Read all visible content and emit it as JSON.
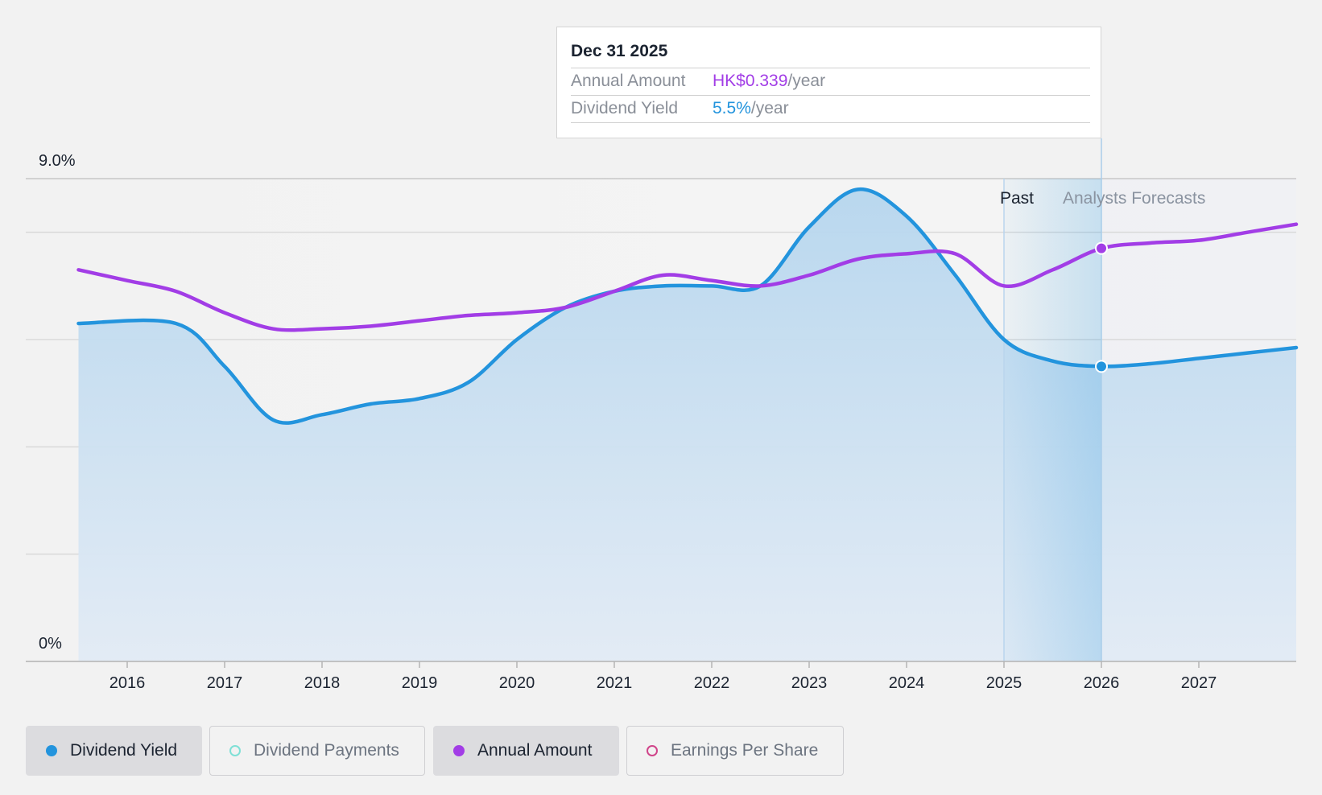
{
  "chart_data": {
    "type": "line",
    "y_axis": {
      "labels": [
        "9.0%",
        "0%"
      ],
      "min": 0,
      "max": 9.0,
      "gridlines": [
        0,
        2,
        4,
        6,
        8,
        9
      ]
    },
    "x_axis": {
      "ticks": [
        "2016",
        "2017",
        "2018",
        "2019",
        "2020",
        "2021",
        "2022",
        "2023",
        "2024",
        "2025",
        "2026",
        "2027"
      ]
    },
    "regions": {
      "past_label": "Past",
      "forecast_label": "Analysts Forecasts"
    },
    "series": [
      {
        "name": "Dividend Yield",
        "color": "#2394dd",
        "filled": true,
        "points": [
          [
            2015.5,
            6.3
          ],
          [
            2016.5,
            6.3
          ],
          [
            2017.0,
            5.5
          ],
          [
            2017.5,
            4.5
          ],
          [
            2018.0,
            4.6
          ],
          [
            2018.5,
            4.8
          ],
          [
            2019.0,
            4.9
          ],
          [
            2019.5,
            5.2
          ],
          [
            2020.0,
            6.0
          ],
          [
            2020.5,
            6.6
          ],
          [
            2021.0,
            6.9
          ],
          [
            2021.5,
            7.0
          ],
          [
            2022.0,
            7.0
          ],
          [
            2022.5,
            7.0
          ],
          [
            2023.0,
            8.1
          ],
          [
            2023.5,
            8.8
          ],
          [
            2024.0,
            8.3
          ],
          [
            2024.5,
            7.2
          ],
          [
            2025.0,
            6.0
          ],
          [
            2025.5,
            5.6
          ],
          [
            2026.0,
            5.5
          ],
          [
            2026.5,
            5.55
          ],
          [
            2027.0,
            5.65
          ],
          [
            2027.5,
            5.75
          ],
          [
            2028.0,
            5.85
          ]
        ]
      },
      {
        "name": "Annual Amount",
        "color": "#a23de6",
        "filled": false,
        "points": [
          [
            2015.5,
            7.3
          ],
          [
            2016.0,
            7.1
          ],
          [
            2016.5,
            6.9
          ],
          [
            2017.0,
            6.5
          ],
          [
            2017.5,
            6.2
          ],
          [
            2018.0,
            6.2
          ],
          [
            2018.5,
            6.25
          ],
          [
            2019.0,
            6.35
          ],
          [
            2019.5,
            6.45
          ],
          [
            2020.0,
            6.5
          ],
          [
            2020.5,
            6.6
          ],
          [
            2021.0,
            6.9
          ],
          [
            2021.5,
            7.2
          ],
          [
            2022.0,
            7.1
          ],
          [
            2022.5,
            7.0
          ],
          [
            2023.0,
            7.2
          ],
          [
            2023.5,
            7.5
          ],
          [
            2024.0,
            7.6
          ],
          [
            2024.5,
            7.6
          ],
          [
            2025.0,
            7.0
          ],
          [
            2025.5,
            7.3
          ],
          [
            2026.0,
            7.7
          ],
          [
            2026.5,
            7.8
          ],
          [
            2027.0,
            7.85
          ],
          [
            2027.5,
            8.0
          ],
          [
            2028.0,
            8.15
          ]
        ]
      }
    ],
    "highlight": {
      "x": 2026.0,
      "label": "Dec 31 2025"
    }
  },
  "tooltip": {
    "title": "Dec 31 2025",
    "rows": [
      {
        "label": "Annual Amount",
        "value": "HK$0.339",
        "suffix": "/year"
      },
      {
        "label": "Dividend Yield",
        "value": "5.5%",
        "suffix": "/year"
      }
    ]
  },
  "legend": [
    {
      "label": "Dividend Yield",
      "color": "#2394dd",
      "active": true,
      "filled": true
    },
    {
      "label": "Dividend Payments",
      "color": "#7fe0d6",
      "active": false,
      "filled": false
    },
    {
      "label": "Annual Amount",
      "color": "#a23de6",
      "active": true,
      "filled": true
    },
    {
      "label": "Earnings Per Share",
      "color": "#d0458a",
      "active": false,
      "filled": false
    }
  ]
}
